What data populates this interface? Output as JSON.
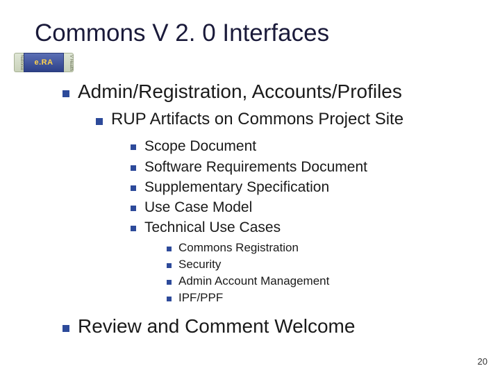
{
  "colors": {
    "bullet_square": "#2d4a9a",
    "title_color": "#1a1a3a",
    "text_color": "#1a1a1a",
    "background": "#ffffff",
    "logo_bg_gradient_top": "#5b6fb5",
    "logo_bg_gradient_bottom": "#2d4088",
    "logo_text": "#ffd24d",
    "logo_tab_bg_top": "#dfe6d6",
    "logo_tab_bg_bottom": "#c9d2ba"
  },
  "typography": {
    "font_family": "Verdana",
    "title_fontsize": 35,
    "l1_fontsize": 28,
    "l2_fontsize": 24,
    "l3_fontsize": 21,
    "l4_fontsize": 17,
    "page_num_fontsize": 13
  },
  "logo": {
    "text": "e.RA",
    "left_tab": "National",
    "right_tab": "V Health"
  },
  "title": "Commons V 2. 0 Interfaces",
  "bullets": {
    "l1_1": "Admin/Registration, Accounts/Profiles",
    "l2_1": "RUP Artifacts on Commons Project Site",
    "l3_1": "Scope Document",
    "l3_2": "Software Requirements Document",
    "l3_3": "Supplementary Specification",
    "l3_4": "Use Case Model",
    "l3_5": "Technical Use Cases",
    "l4_1": "Commons Registration",
    "l4_2": "Security",
    "l4_3": "Admin Account Management",
    "l4_4": "IPF/PPF",
    "l1_2": "Review and Comment Welcome"
  },
  "page_number": "20"
}
